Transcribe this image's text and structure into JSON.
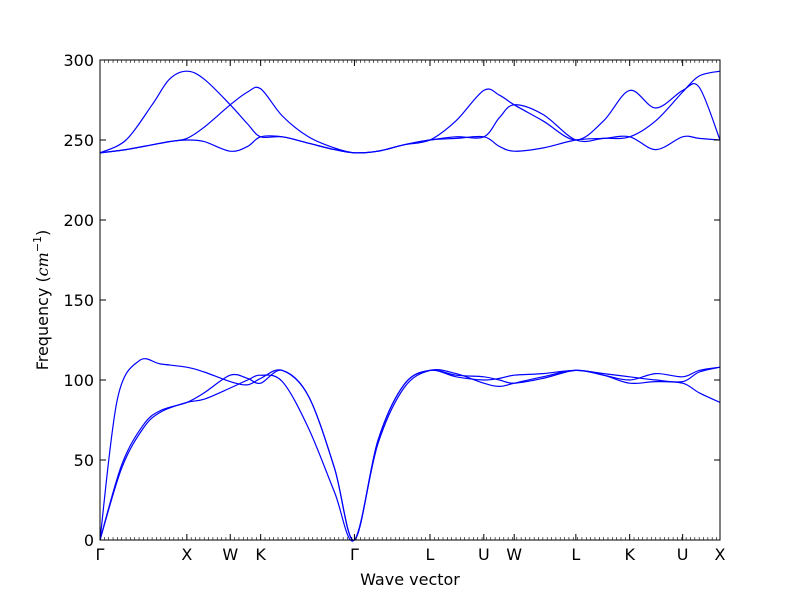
{
  "chart_data": {
    "type": "line",
    "title": "",
    "xlabel": "Wave vector",
    "ylabel": {
      "prefix": "Frequency (",
      "unit": "cm",
      "exponent": "−1",
      "suffix": ")"
    },
    "ylim": [
      0,
      300
    ],
    "yticks": [
      0,
      50,
      100,
      150,
      200,
      250,
      300
    ],
    "xlim": [
      0,
      7.14
    ],
    "xticks": [
      {
        "x": 0.0,
        "label": "Γ"
      },
      {
        "x": 1.0,
        "label": "X"
      },
      {
        "x": 1.5,
        "label": "W"
      },
      {
        "x": 1.85,
        "label": "K"
      },
      {
        "x": 2.93,
        "label": "Γ"
      },
      {
        "x": 3.8,
        "label": "L"
      },
      {
        "x": 4.42,
        "label": "U"
      },
      {
        "x": 4.77,
        "label": "W"
      },
      {
        "x": 5.48,
        "label": "L"
      },
      {
        "x": 6.1,
        "label": "K"
      },
      {
        "x": 6.71,
        "label": "U"
      },
      {
        "x": 7.14,
        "label": "X"
      }
    ],
    "grid": false,
    "line_color": "#0000ff",
    "series": [
      {
        "x": [
          0,
          0.25,
          0.5,
          0.7,
          1.0,
          1.2,
          1.5,
          1.7,
          1.85,
          2.1,
          2.4,
          2.7,
          2.93,
          3.2,
          3.5,
          3.8,
          4.1,
          4.42,
          4.6,
          4.77,
          5.1,
          5.48,
          5.8,
          6.1,
          6.4,
          6.71,
          6.9,
          7.14
        ],
        "y": [
          0,
          45,
          70,
          80,
          86,
          88,
          95,
          100,
          103,
          99,
          70,
          30,
          0,
          60,
          95,
          106,
          104,
          98,
          96,
          98,
          102,
          106,
          103,
          98,
          99,
          98,
          92,
          86
        ]
      },
      {
        "x": [
          0,
          0.25,
          0.5,
          0.7,
          1.0,
          1.2,
          1.5,
          1.7,
          1.85,
          2.1,
          2.4,
          2.7,
          2.93,
          3.2,
          3.5,
          3.8,
          4.1,
          4.42,
          4.6,
          4.77,
          5.1,
          5.48,
          5.8,
          6.1,
          6.4,
          6.71,
          6.9,
          7.14
        ],
        "y": [
          0,
          47,
          72,
          81,
          86,
          92,
          103,
          101,
          98,
          106,
          90,
          45,
          0,
          62,
          97,
          106,
          103,
          102,
          100,
          98,
          101,
          106,
          103,
          100,
          104,
          102,
          106,
          108
        ]
      },
      {
        "x": [
          0,
          0.2,
          0.45,
          0.7,
          1.0,
          1.2,
          1.5,
          1.7,
          1.85,
          2.1,
          2.4,
          2.7,
          2.93,
          3.2,
          3.5,
          3.8,
          4.1,
          4.42,
          4.6,
          4.77,
          5.1,
          5.48,
          5.8,
          6.1,
          6.4,
          6.71,
          6.9,
          7.14
        ],
        "y": [
          0,
          88,
          112,
          110,
          108,
          105,
          99,
          97,
          101,
          106,
          90,
          45,
          0,
          62,
          97,
          106,
          102,
          100,
          101,
          103,
          104,
          106,
          104,
          102,
          100,
          99,
          105,
          108
        ]
      },
      {
        "x": [
          0,
          0.3,
          0.6,
          0.8,
          1.0,
          1.2,
          1.5,
          1.7,
          1.85,
          2.1,
          2.4,
          2.7,
          2.93,
          3.2,
          3.5,
          3.8,
          4.1,
          4.42,
          4.6,
          4.77,
          5.1,
          5.48,
          5.8,
          6.1,
          6.4,
          6.71,
          6.9,
          7.14
        ],
        "y": [
          242,
          244,
          247,
          249,
          250,
          249,
          243,
          246,
          252,
          252,
          248,
          244,
          242,
          243,
          247,
          250,
          251,
          252,
          246,
          243,
          245,
          250,
          251,
          252,
          244,
          252,
          251,
          250
        ]
      },
      {
        "x": [
          0,
          0.3,
          0.6,
          0.8,
          1.0,
          1.2,
          1.5,
          1.7,
          1.85,
          2.1,
          2.4,
          2.7,
          2.93,
          3.2,
          3.5,
          3.8,
          4.1,
          4.42,
          4.6,
          4.77,
          5.1,
          5.48,
          5.8,
          6.1,
          6.4,
          6.71,
          6.9,
          7.14
        ],
        "y": [
          242,
          244,
          247,
          249,
          251,
          258,
          272,
          280,
          282,
          265,
          252,
          245,
          242,
          243,
          247,
          250,
          262,
          281,
          278,
          272,
          262,
          250,
          262,
          281,
          270,
          281,
          283,
          250
        ]
      },
      {
        "x": [
          0,
          0.3,
          0.6,
          0.8,
          1.0,
          1.2,
          1.5,
          1.7,
          1.85,
          2.1,
          2.4,
          2.7,
          2.93,
          3.2,
          3.5,
          3.8,
          4.1,
          4.42,
          4.6,
          4.77,
          5.1,
          5.48,
          5.8,
          6.1,
          6.4,
          6.71,
          6.9,
          7.14
        ],
        "y": [
          242,
          250,
          272,
          288,
          293,
          288,
          272,
          260,
          252,
          252,
          248,
          244,
          242,
          243,
          247,
          250,
          252,
          252,
          264,
          272,
          266,
          250,
          251,
          252,
          262,
          280,
          290,
          293
        ]
      }
    ]
  }
}
